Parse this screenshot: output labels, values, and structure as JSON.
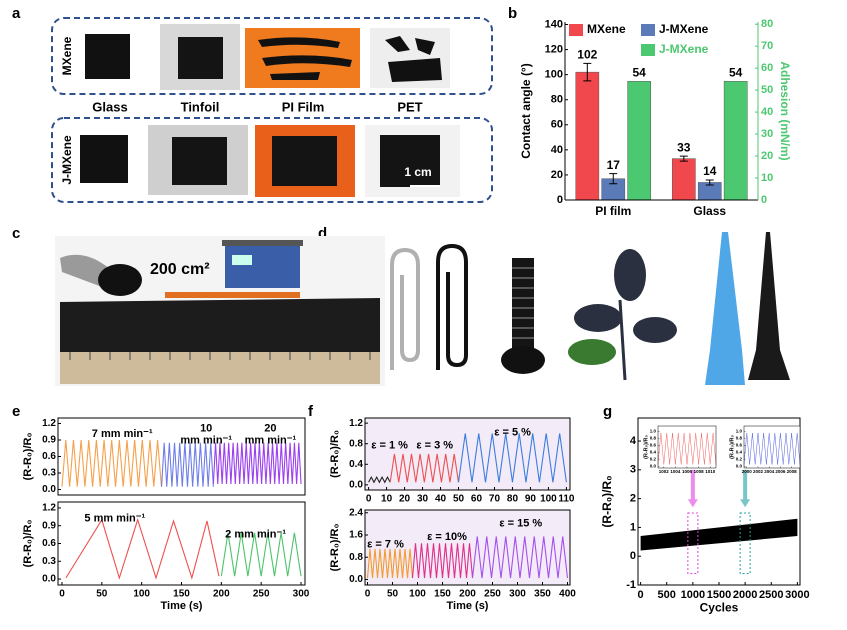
{
  "panel_labels": [
    "a",
    "b",
    "c",
    "d",
    "e",
    "f",
    "g"
  ],
  "photo_a": {
    "rows": [
      "MXene",
      "J-MXene"
    ],
    "substrates": [
      "Glass",
      "Tinfoil",
      "PI Film",
      "PET"
    ],
    "scale_bar": "1 cm"
  },
  "photo_c": {
    "area": "200 cm²"
  },
  "chart_data": [
    {
      "type": "bar",
      "categories": [
        "PI film",
        "Glass"
      ],
      "series": [
        {
          "name": "MXene",
          "color": "#f0484c",
          "values": [
            102,
            33
          ],
          "errors": [
            7,
            2
          ]
        },
        {
          "name": "J-MXene",
          "color": "#5b7bb8",
          "values": [
            17,
            14
          ],
          "errors": [
            4,
            2
          ]
        },
        {
          "name": "J-MXene",
          "color": "#4cc870",
          "values": [
            54,
            54
          ],
          "axis": "y2"
        }
      ],
      "ylabel": "Contact angle (°)",
      "y2label": "Adhesion (mN/m)",
      "ylim": [
        0,
        142
      ],
      "yticks": [
        0,
        20,
        40,
        60,
        80,
        100,
        120,
        140
      ],
      "y2lim": [
        0,
        81
      ],
      "y2ticks": [
        0,
        10,
        20,
        30,
        40,
        50,
        60,
        70,
        80
      ]
    },
    {
      "type": "line",
      "ylabel": "(R-R₀)/R₀",
      "xlim": [
        -5,
        305
      ],
      "ylim": [
        -0.1,
        1.3
      ],
      "yticks": [
        {
          "value": 0,
          "label": "0.0"
        },
        {
          "value": 0.3,
          "label": "0.3"
        },
        {
          "value": 0.6,
          "label": "0.6"
        },
        {
          "value": 0.9,
          "label": "0.9"
        },
        {
          "value": 1.2,
          "label": "1.2"
        }
      ],
      "annotations": [
        [
          "7 mm min⁻¹"
        ],
        [
          "10",
          "mm min⁻¹"
        ],
        [
          "20",
          "mm min⁻¹"
        ]
      ],
      "series": [
        {
          "color": "#f5a04a",
          "x": [
            0,
            4.8,
            9.6,
            14.4,
            19.2,
            24,
            28.8,
            33.6,
            38.4,
            43.2,
            48,
            52.8,
            57.6,
            62.4,
            67.2,
            72,
            76.8,
            81.6,
            86.4,
            91.2,
            96,
            100.8,
            105.6,
            110.4,
            115.2,
            120,
            124.8
          ],
          "values": [
            0.05,
            0.9,
            0.05,
            0.9,
            0.05,
            0.9,
            0.05,
            0.9,
            0.05,
            0.9,
            0.05,
            0.9,
            0.05,
            0.9,
            0.05,
            0.9,
            0.05,
            0.9,
            0.05,
            0.9,
            0.05,
            0.9,
            0.05,
            0.9,
            0.05,
            0.9,
            0.05
          ]
        },
        {
          "color": "#6f7de8",
          "x": [
            125,
            128.25,
            131.5,
            134.75,
            138,
            141.25,
            144.5,
            147.75,
            151,
            154.25,
            157.5,
            160.75,
            164,
            167.25,
            170.5,
            173.75,
            177,
            180.25,
            183.5,
            186.75,
            190
          ],
          "values": [
            0.05,
            0.85,
            0.05,
            0.85,
            0.05,
            0.85,
            0.05,
            0.85,
            0.05,
            0.85,
            0.05,
            0.85,
            0.05,
            0.85,
            0.05,
            0.85,
            0.05,
            0.85,
            0.05,
            0.85,
            0.05
          ]
        },
        {
          "color": "#9b3ff0",
          "x": [
            190,
            192.75,
            195.5,
            198.25,
            201,
            203.75,
            206.5,
            209.25,
            212,
            214.75,
            217.5,
            220.25,
            223,
            225.75,
            228.5,
            231.25,
            234,
            236.75,
            239.5,
            242.25,
            245,
            247.75,
            250.5,
            253.25,
            256,
            258.75,
            261.5,
            264.25,
            267,
            269.75,
            272.5,
            275.25,
            278,
            280.75,
            283.5,
            286.25,
            289,
            291.75,
            294.5,
            297.25,
            300
          ],
          "values": [
            0.1,
            0.85,
            0.1,
            0.85,
            0.1,
            0.85,
            0.1,
            0.85,
            0.1,
            0.85,
            0.1,
            0.85,
            0.1,
            0.85,
            0.1,
            0.85,
            0.1,
            0.85,
            0.1,
            0.85,
            0.1,
            0.85,
            0.1,
            0.85,
            0.1,
            0.85,
            0.1,
            0.85,
            0.1,
            0.85,
            0.1,
            0.85,
            0.1,
            0.85,
            0.1,
            0.85,
            0.1,
            0.85,
            0.1,
            0.85,
            0.1
          ]
        }
      ]
    },
    {
      "type": "line",
      "ylabel": "(R-R₀)/R₀",
      "xlabel": "Time (s)",
      "xlim": [
        -5,
        305
      ],
      "xticks": [
        0,
        50,
        100,
        150,
        200,
        250,
        300
      ],
      "ylim": [
        -0.1,
        1.3
      ],
      "yticks": [
        {
          "value": 0,
          "label": "0.0"
        },
        {
          "value": 0.3,
          "label": "0.3"
        },
        {
          "value": 0.6,
          "label": "0.6"
        },
        {
          "value": 0.9,
          "label": "0.9"
        },
        {
          "value": 1.2,
          "label": "1.2"
        }
      ],
      "annotations": [
        [
          "5 mm min⁻¹"
        ],
        [
          "2 mm min⁻¹"
        ]
      ],
      "series": [
        {
          "color": "#ef4f4f",
          "x": [
            5,
            50,
            72,
            95,
            118,
            140,
            163,
            182,
            197
          ],
          "values": [
            0.02,
            1.0,
            0.02,
            1.0,
            0.02,
            0.98,
            0.02,
            0.98,
            0.05
          ]
        },
        {
          "color": "#4cc46a",
          "x": [
            200,
            208.3,
            216.7,
            225,
            233.3,
            241.7,
            250,
            258.3,
            266.7,
            275,
            283.3,
            291.7,
            300
          ],
          "values": [
            0.05,
            0.78,
            0.05,
            0.78,
            0.05,
            0.78,
            0.05,
            0.78,
            0.05,
            0.78,
            0.05,
            0.78,
            0.05
          ]
        }
      ]
    },
    {
      "type": "line",
      "ylabel": "(R-R₀)/R₀",
      "xlim": [
        -2,
        112
      ],
      "xticks": [
        0,
        10,
        20,
        30,
        40,
        50,
        60,
        70,
        80,
        90,
        100,
        110
      ],
      "ylim": [
        -0.1,
        1.3
      ],
      "yticks": [
        {
          "value": 0,
          "label": "0.0"
        },
        {
          "value": 0.4,
          "label": "0.4"
        },
        {
          "value": 0.8,
          "label": "0.8"
        },
        {
          "value": 1.2,
          "label": "1.2"
        }
      ],
      "annotations": [
        [
          "ε = 1 %"
        ],
        [
          "ε = 3 %"
        ],
        [
          "ε = 5 %"
        ]
      ],
      "series": [
        {
          "color": "#222222",
          "x": [
            0,
            1.5,
            3,
            4.5,
            6,
            7.5,
            9,
            10.5,
            12
          ],
          "values": [
            0.05,
            0.15,
            0.05,
            0.15,
            0.05,
            0.15,
            0.05,
            0.15,
            0.05
          ]
        },
        {
          "color": "#ef4f4f",
          "x": [
            12,
            14.375,
            16.75,
            19.125,
            21.5,
            23.875,
            26.25,
            28.625,
            31,
            33.375,
            35.75,
            38.125,
            40.5,
            42.875,
            45.25,
            47.625,
            50
          ],
          "values": [
            0.05,
            0.6,
            0.05,
            0.6,
            0.05,
            0.6,
            0.05,
            0.6,
            0.05,
            0.6,
            0.05,
            0.6,
            0.05,
            0.6,
            0.05,
            0.6,
            0.05
          ]
        },
        {
          "color": "#3a7de0",
          "x": [
            50,
            53.75,
            57.5,
            61.25,
            65,
            68.75,
            72.5,
            76.25,
            80,
            83.75,
            87.5,
            91.25,
            95,
            98.75,
            102.5,
            106.25,
            110
          ],
          "values": [
            0.05,
            1.0,
            0.05,
            1.0,
            0.05,
            1.0,
            0.05,
            1.0,
            0.05,
            1.0,
            0.05,
            1.0,
            0.05,
            1.0,
            0.05,
            1.0,
            0.05
          ]
        }
      ]
    },
    {
      "type": "line",
      "ylabel": "(R-R₀)/R₀",
      "xlabel": "Time (s)",
      "xlim": [
        -5,
        405
      ],
      "xticks": [
        0,
        50,
        100,
        150,
        200,
        250,
        300,
        350,
        400
      ],
      "ylim": [
        -0.2,
        2.5
      ],
      "yticks": [
        {
          "value": 0,
          "label": "0.0"
        },
        {
          "value": 0.8,
          "label": "0.8"
        },
        {
          "value": 1.6,
          "label": "1.6"
        },
        {
          "value": 2.4,
          "label": "2.4"
        }
      ],
      "annotations": [
        [
          "ε = 7 %"
        ],
        [
          "ε = 10%"
        ],
        [
          "ε = 15 %"
        ]
      ],
      "series": [
        {
          "color": "#f59a30",
          "x": [
            0,
            5,
            10,
            15,
            20,
            25,
            30,
            35,
            40,
            45,
            50,
            55,
            60,
            65,
            70,
            75,
            80,
            85,
            90
          ],
          "values": [
            0.05,
            1.1,
            0.05,
            1.1,
            0.05,
            1.1,
            0.05,
            1.1,
            0.05,
            1.1,
            0.05,
            1.1,
            0.05,
            1.1,
            0.05,
            1.1,
            0.05,
            1.1,
            0.05
          ]
        },
        {
          "color": "#e0308a",
          "x": [
            90,
            96,
            102,
            108,
            114,
            120,
            126,
            132,
            138,
            144,
            150,
            156,
            162,
            168,
            174,
            180,
            186,
            192,
            198,
            204,
            210
          ],
          "values": [
            0.05,
            1.3,
            0.05,
            1.3,
            0.05,
            1.3,
            0.05,
            1.3,
            0.05,
            1.3,
            0.05,
            1.3,
            0.05,
            1.3,
            0.05,
            1.3,
            0.05,
            1.3,
            0.05,
            1.3,
            0.05
          ]
        },
        {
          "color": "#a64ef0",
          "x": [
            210,
            219.5,
            229,
            238.5,
            248,
            257.5,
            267,
            276.5,
            286,
            295.5,
            305,
            314.5,
            324,
            333.5,
            343,
            352.5,
            362,
            371.5,
            381,
            390.5,
            400
          ],
          "values": [
            0.05,
            1.55,
            0.05,
            1.55,
            0.05,
            1.55,
            0.05,
            1.55,
            0.05,
            1.55,
            0.05,
            1.55,
            0.05,
            1.55,
            0.05,
            1.55,
            0.05,
            1.55,
            0.05,
            1.55,
            0.05
          ]
        }
      ]
    },
    {
      "type": "band",
      "ylabel": "(R-R₀)/R₀",
      "xlabel": "Cycles",
      "xlim": [
        -50,
        3050
      ],
      "xticks": [
        0,
        500,
        1000,
        1500,
        2000,
        2500,
        3000
      ],
      "ylim": [
        -1,
        4.8
      ],
      "yticks": [
        -1,
        0,
        1,
        2,
        3,
        4
      ],
      "highlights": [
        {
          "x": 1000,
          "color": "#e040e0"
        },
        {
          "x": 2000,
          "color": "#20a0a0"
        }
      ],
      "series": [
        {
          "color": "#000000",
          "x": [
            0,
            3000
          ],
          "values": [
            0.7,
            1.3
          ],
          "lower": [
            0.2,
            0.7
          ]
        }
      ]
    },
    {
      "type": "line",
      "ylabel": "(R-R₀)/R₀",
      "xlim": [
        1001,
        1011
      ],
      "xticks": [
        1002,
        1004,
        1006,
        1008,
        1010
      ],
      "ylim": [
        -0.05,
        1.15
      ],
      "yticks": [
        {
          "value": 0,
          "label": "0.0"
        },
        {
          "value": 0.2,
          "label": "0.2"
        },
        {
          "value": 0.4,
          "label": "0.4"
        },
        {
          "value": 0.6,
          "label": "0.6"
        },
        {
          "value": 0.8,
          "label": "0.8"
        },
        {
          "value": 1,
          "label": "1.0"
        }
      ],
      "series": [
        {
          "color": "#f06060",
          "x": [
            1001,
            1001.5,
            1002,
            1002.5,
            1003,
            1003.5,
            1004,
            1004.5,
            1005,
            1005.5,
            1006,
            1006.5,
            1007,
            1007.5,
            1008,
            1008.5,
            1009,
            1009.5,
            1010,
            1010.5,
            1011
          ],
          "values": [
            0.05,
            0.95,
            0.05,
            0.95,
            0.05,
            0.95,
            0.05,
            0.95,
            0.05,
            0.95,
            0.05,
            0.95,
            0.05,
            0.95,
            0.05,
            0.95,
            0.05,
            0.95,
            0.05,
            0.95,
            0.05
          ]
        }
      ]
    },
    {
      "type": "line",
      "ylabel": "(R-R₀)/R₀",
      "xlim": [
        1999.5,
        2009.5
      ],
      "xticks": [
        2000,
        2002,
        2004,
        2006,
        2008
      ],
      "ylim": [
        -0.05,
        1.15
      ],
      "yticks": [
        {
          "value": 0,
          "label": "0.0"
        },
        {
          "value": 0.2,
          "label": "0.2"
        },
        {
          "value": 0.4,
          "label": "0.4"
        },
        {
          "value": 0.6,
          "label": "0.6"
        },
        {
          "value": 0.8,
          "label": "0.8"
        },
        {
          "value": 1,
          "label": "1.0"
        }
      ],
      "series": [
        {
          "color": "#5060e0",
          "x": [
            1999.5,
            2000,
            2000.5,
            2001,
            2001.5,
            2002,
            2002.5,
            2003,
            2003.5,
            2004,
            2004.5,
            2005,
            2005.5,
            2006,
            2006.5,
            2007,
            2007.5,
            2008,
            2008.5,
            2009,
            2009.5
          ],
          "values": [
            0.05,
            0.95,
            0.05,
            0.95,
            0.05,
            0.95,
            0.05,
            0.95,
            0.05,
            0.95,
            0.05,
            0.95,
            0.05,
            0.95,
            0.05,
            0.95,
            0.05,
            0.95,
            0.05,
            0.95,
            0.05
          ]
        }
      ]
    }
  ]
}
